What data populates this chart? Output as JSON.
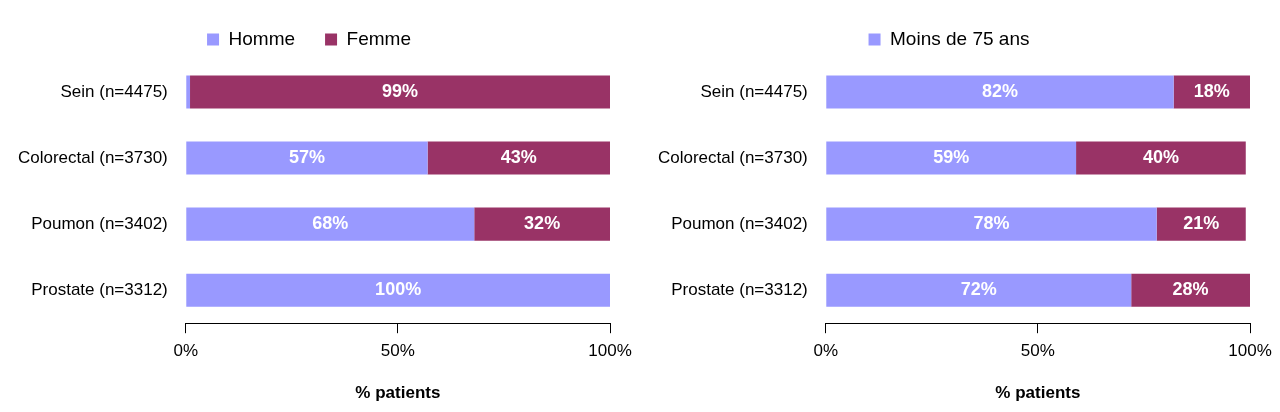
{
  "chart_data": [
    {
      "type": "bar",
      "orientation": "horizontal",
      "stacked": true,
      "xlabel": "% patients",
      "legend": "top",
      "grid": false,
      "categories": [
        "Sein (n=4475)",
        "Colorectal (n=3730)",
        "Poumon (n=3402)",
        "Prostate (n=3312)"
      ],
      "xlim": [
        0,
        100
      ],
      "xticks": [
        {
          "value": 0,
          "label": "0%"
        },
        {
          "value": 50,
          "label": "50%"
        },
        {
          "value": 100,
          "label": "100%"
        }
      ],
      "series": [
        {
          "name": "Homme",
          "color": "#9999ff",
          "values": [
            1,
            57,
            68,
            100
          ],
          "value_labels": [
            null,
            "57%",
            "68%",
            "100%"
          ]
        },
        {
          "name": "Femme",
          "color": "#993366",
          "values": [
            99,
            43,
            32,
            null
          ],
          "value_labels": [
            "99%",
            "43%",
            "32%",
            null
          ]
        }
      ]
    },
    {
      "type": "bar",
      "orientation": "horizontal",
      "stacked": true,
      "xlabel": "% patients",
      "legend": "top",
      "grid": false,
      "categories": [
        "Sein (n=4475)",
        "Colorectal (n=3730)",
        "Poumon (n=3402)",
        "Prostate (n=3312)"
      ],
      "xlim": [
        0,
        100
      ],
      "xticks": [
        {
          "value": 0,
          "label": "0%"
        },
        {
          "value": 50,
          "label": "50%"
        },
        {
          "value": 100,
          "label": "100%"
        }
      ],
      "series": [
        {
          "name": "Moins de 75 ans",
          "color": "#9999ff",
          "values": [
            82,
            59,
            78,
            72
          ],
          "value_labels": [
            "82%",
            "59%",
            "78%",
            "72%"
          ]
        },
        {
          "color": "#993366",
          "values": [
            18,
            40,
            21,
            28
          ],
          "value_labels": [
            "18%",
            "40%",
            "21%",
            "28%"
          ]
        }
      ]
    }
  ]
}
